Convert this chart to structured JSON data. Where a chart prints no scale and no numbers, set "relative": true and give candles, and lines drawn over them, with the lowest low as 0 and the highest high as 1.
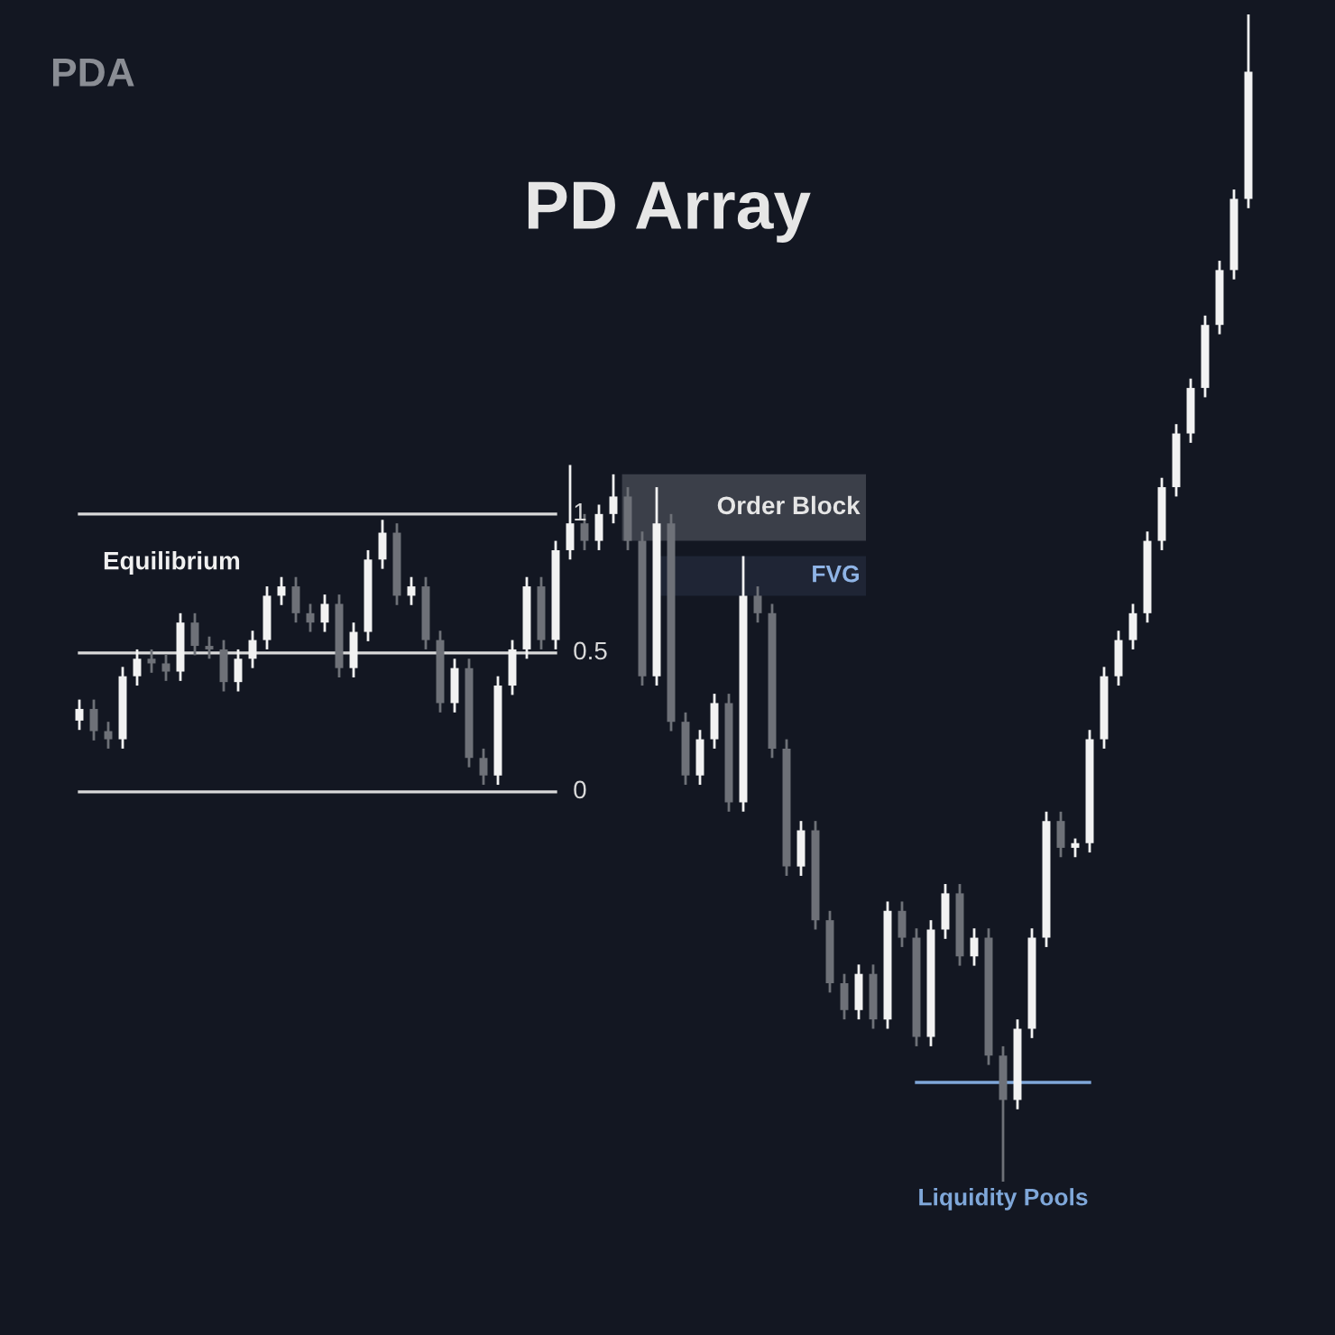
{
  "chart_data": {
    "type": "candlestick",
    "title": "PD Array",
    "relative": true,
    "categories": [
      null,
      null,
      null,
      null,
      null,
      null,
      null,
      null,
      null,
      null,
      null,
      null,
      null,
      null,
      null,
      null,
      null,
      null,
      null,
      null,
      null,
      null,
      null,
      null,
      null,
      null,
      null,
      null,
      null,
      null,
      null,
      null,
      null,
      null,
      null,
      null,
      null,
      null,
      null,
      null,
      null,
      null,
      null,
      null,
      null,
      null,
      null,
      null,
      null,
      null,
      null,
      null,
      null,
      null,
      null,
      null,
      null,
      null,
      null,
      null,
      null,
      null,
      null,
      null,
      null,
      null,
      null,
      null,
      null,
      null,
      null,
      null,
      null,
      null,
      null,
      null,
      null,
      null,
      null,
      null,
      null,
      null
    ],
    "ohlc": [
      [
        0.395,
        0.413,
        0.387,
        0.405
      ],
      [
        0.405,
        0.413,
        0.378,
        0.386
      ],
      [
        0.386,
        0.394,
        0.371,
        0.379
      ],
      [
        0.379,
        0.441,
        0.371,
        0.433
      ],
      [
        0.433,
        0.456,
        0.425,
        0.448
      ],
      [
        0.448,
        0.456,
        0.436,
        0.444
      ],
      [
        0.444,
        0.452,
        0.429,
        0.437
      ],
      [
        0.437,
        0.487,
        0.429,
        0.479
      ],
      [
        0.479,
        0.487,
        0.451,
        0.459
      ],
      [
        0.459,
        0.467,
        0.448,
        0.456
      ],
      [
        0.456,
        0.464,
        0.42,
        0.428
      ],
      [
        0.428,
        0.456,
        0.42,
        0.448
      ],
      [
        0.448,
        0.472,
        0.44,
        0.464
      ],
      [
        0.464,
        0.51,
        0.456,
        0.502
      ],
      [
        0.502,
        0.518,
        0.494,
        0.51
      ],
      [
        0.51,
        0.518,
        0.479,
        0.487
      ],
      [
        0.487,
        0.495,
        0.471,
        0.479
      ],
      [
        0.479,
        0.503,
        0.471,
        0.495
      ],
      [
        0.495,
        0.503,
        0.432,
        0.44
      ],
      [
        0.44,
        0.479,
        0.432,
        0.471
      ],
      [
        0.471,
        0.541,
        0.463,
        0.533
      ],
      [
        0.533,
        0.567,
        0.525,
        0.556
      ],
      [
        0.556,
        0.564,
        0.494,
        0.502
      ],
      [
        0.502,
        0.518,
        0.494,
        0.51
      ],
      [
        0.51,
        0.518,
        0.456,
        0.464
      ],
      [
        0.464,
        0.472,
        0.402,
        0.41
      ],
      [
        0.41,
        0.448,
        0.402,
        0.44
      ],
      [
        0.44,
        0.448,
        0.355,
        0.363
      ],
      [
        0.363,
        0.371,
        0.34,
        0.348
      ],
      [
        0.348,
        0.433,
        0.34,
        0.425
      ],
      [
        0.425,
        0.464,
        0.417,
        0.456
      ],
      [
        0.456,
        0.518,
        0.448,
        0.51
      ],
      [
        0.51,
        0.518,
        0.456,
        0.464
      ],
      [
        0.464,
        0.549,
        0.456,
        0.541
      ],
      [
        0.541,
        0.614,
        0.533,
        0.564
      ],
      [
        0.564,
        0.572,
        0.541,
        0.549
      ],
      [
        0.549,
        0.58,
        0.541,
        0.572
      ],
      [
        0.572,
        0.606,
        0.564,
        0.587
      ],
      [
        0.587,
        0.595,
        0.541,
        0.549
      ],
      [
        0.549,
        0.557,
        0.425,
        0.433
      ],
      [
        0.433,
        0.595,
        0.425,
        0.564
      ],
      [
        0.564,
        0.572,
        0.386,
        0.394
      ],
      [
        0.394,
        0.402,
        0.34,
        0.348
      ],
      [
        0.348,
        0.387,
        0.34,
        0.379
      ],
      [
        0.379,
        0.418,
        0.371,
        0.41
      ],
      [
        0.41,
        0.418,
        0.317,
        0.325
      ],
      [
        0.325,
        0.536,
        0.317,
        0.502
      ],
      [
        0.502,
        0.51,
        0.479,
        0.487
      ],
      [
        0.487,
        0.495,
        0.363,
        0.371
      ],
      [
        0.371,
        0.379,
        0.262,
        0.27
      ],
      [
        0.27,
        0.309,
        0.262,
        0.301
      ],
      [
        0.301,
        0.309,
        0.216,
        0.224
      ],
      [
        0.224,
        0.232,
        0.162,
        0.17
      ],
      [
        0.17,
        0.178,
        0.139,
        0.147
      ],
      [
        0.147,
        0.186,
        0.139,
        0.178
      ],
      [
        0.178,
        0.186,
        0.131,
        0.139
      ],
      [
        0.139,
        0.24,
        0.131,
        0.232
      ],
      [
        0.232,
        0.24,
        0.201,
        0.209
      ],
      [
        0.209,
        0.217,
        0.116,
        0.124
      ],
      [
        0.124,
        0.224,
        0.116,
        0.216
      ],
      [
        0.216,
        0.255,
        0.208,
        0.247
      ],
      [
        0.247,
        0.255,
        0.185,
        0.193
      ],
      [
        0.193,
        0.217,
        0.185,
        0.209
      ],
      [
        0.209,
        0.217,
        0.1,
        0.108
      ],
      [
        0.108,
        0.116,
        0.0,
        0.07
      ],
      [
        0.07,
        0.139,
        0.062,
        0.131
      ],
      [
        0.131,
        0.217,
        0.123,
        0.209
      ],
      [
        0.209,
        0.317,
        0.201,
        0.309
      ],
      [
        0.309,
        0.317,
        0.278,
        0.286
      ],
      [
        0.286,
        0.294,
        0.278,
        0.29
      ],
      [
        0.29,
        0.387,
        0.282,
        0.379
      ],
      [
        0.379,
        0.441,
        0.371,
        0.433
      ],
      [
        0.433,
        0.472,
        0.425,
        0.464
      ],
      [
        0.464,
        0.495,
        0.456,
        0.487
      ],
      [
        0.487,
        0.557,
        0.479,
        0.549
      ],
      [
        0.549,
        0.603,
        0.541,
        0.595
      ],
      [
        0.595,
        0.649,
        0.587,
        0.641
      ],
      [
        0.641,
        0.688,
        0.633,
        0.68
      ],
      [
        0.68,
        0.742,
        0.672,
        0.734
      ],
      [
        0.734,
        0.789,
        0.726,
        0.781
      ],
      [
        0.781,
        0.85,
        0.773,
        0.842
      ],
      [
        0.842,
        1.0,
        0.834,
        0.951
      ]
    ],
    "colors": [
      "#f2f2f2",
      "#6e7178",
      "#6e7178",
      "#f2f2f2",
      "#f2f2f2",
      "#6e7178",
      "#6e7178",
      "#f2f2f2",
      "#6e7178",
      "#6e7178",
      "#6e7178",
      "#f2f2f2",
      "#f2f2f2",
      "#f2f2f2",
      "#f2f2f2",
      "#6e7178",
      "#6e7178",
      "#f2f2f2",
      "#6e7178",
      "#f2f2f2",
      "#f2f2f2",
      "#f2f2f2",
      "#6e7178",
      "#f2f2f2",
      "#6e7178",
      "#6e7178",
      "#f2f2f2",
      "#6e7178",
      "#6e7178",
      "#f2f2f2",
      "#f2f2f2",
      "#f2f2f2",
      "#6e7178",
      "#f2f2f2",
      "#f2f2f2",
      "#6e7178",
      "#f2f2f2",
      "#f2f2f2",
      "#6e7178",
      "#6e7178",
      "#f2f2f2",
      "#6e7178",
      "#6e7178",
      "#f2f2f2",
      "#f2f2f2",
      "#6e7178",
      "#f2f2f2",
      "#6e7178",
      "#6e7178",
      "#6e7178",
      "#f2f2f2",
      "#6e7178",
      "#6e7178",
      "#6e7178",
      "#f2f2f2",
      "#6e7178",
      "#f2f2f2",
      "#6e7178",
      "#6e7178",
      "#f2f2f2",
      "#f2f2f2",
      "#6e7178",
      "#f2f2f2",
      "#6e7178",
      "#6e7178",
      "#f2f2f2",
      "#f2f2f2",
      "#f2f2f2",
      "#6e7178",
      "#f2f2f2",
      "#f2f2f2",
      "#f2f2f2",
      "#f2f2f2",
      "#f2f2f2",
      "#f2f2f2",
      "#f2f2f2",
      "#f2f2f2",
      "#f2f2f2",
      "#f2f2f2",
      "#f2f2f2",
      "#f2f2f2",
      "#f2f2f2"
    ],
    "bands": [
      {
        "axis": "y",
        "from": 0.549,
        "to": 0.606,
        "label": "Order Block",
        "color": "#3b3f49"
      },
      {
        "axis": "y",
        "from": 0.502,
        "to": 0.536,
        "label": "FVG",
        "color": "#1f2535"
      }
    ],
    "series": [
      {
        "type": "line",
        "name": "1",
        "color": "#d9d9d9",
        "values": [
          0.572,
          0.572,
          0.572,
          0.572,
          0.572,
          0.572,
          0.572,
          0.572,
          0.572,
          0.572,
          0.572,
          0.572,
          0.572,
          0.572,
          0.572,
          0.572,
          0.572,
          0.572,
          0.572,
          0.572,
          0.572,
          0.572,
          0.572,
          0.572,
          0.572,
          0.572,
          0.572,
          0.572,
          0.572,
          0.572,
          0.572,
          0.572,
          0.572,
          0.572,
          null,
          null,
          null,
          null,
          null,
          null,
          null,
          null,
          null,
          null,
          null,
          null,
          null,
          null,
          null,
          null,
          null,
          null,
          null,
          null,
          null,
          null,
          null,
          null,
          null,
          null,
          null,
          null,
          null,
          null,
          null,
          null,
          null,
          null,
          null,
          null,
          null,
          null,
          null,
          null,
          null,
          null,
          null,
          null,
          null,
          null,
          null,
          null
        ]
      },
      {
        "type": "line",
        "name": "0.5",
        "color": "#d9d9d9",
        "values": [
          0.453,
          0.453,
          0.453,
          0.453,
          0.453,
          0.453,
          0.453,
          0.453,
          0.453,
          0.453,
          0.453,
          0.453,
          0.453,
          0.453,
          0.453,
          0.453,
          0.453,
          0.453,
          0.453,
          0.453,
          0.453,
          0.453,
          0.453,
          0.453,
          0.453,
          0.453,
          0.453,
          0.453,
          0.453,
          0.453,
          0.453,
          0.453,
          0.453,
          0.453,
          null,
          null,
          null,
          null,
          null,
          null,
          null,
          null,
          null,
          null,
          null,
          null,
          null,
          null,
          null,
          null,
          null,
          null,
          null,
          null,
          null,
          null,
          null,
          null,
          null,
          null,
          null,
          null,
          null,
          null,
          null,
          null,
          null,
          null,
          null,
          null,
          null,
          null,
          null,
          null,
          null,
          null,
          null,
          null,
          null,
          null,
          null,
          null
        ]
      },
      {
        "type": "line",
        "name": "0",
        "color": "#d9d9d9",
        "values": [
          0.334,
          0.334,
          0.334,
          0.334,
          0.334,
          0.334,
          0.334,
          0.334,
          0.334,
          0.334,
          0.334,
          0.334,
          0.334,
          0.334,
          0.334,
          0.334,
          0.334,
          0.334,
          0.334,
          0.334,
          0.334,
          0.334,
          0.334,
          0.334,
          0.334,
          0.334,
          0.334,
          0.334,
          0.334,
          0.334,
          0.334,
          0.334,
          0.334,
          0.334,
          null,
          null,
          null,
          null,
          null,
          null,
          null,
          null,
          null,
          null,
          null,
          null,
          null,
          null,
          null,
          null,
          null,
          null,
          null,
          null,
          null,
          null,
          null,
          null,
          null,
          null,
          null,
          null,
          null,
          null,
          null,
          null,
          null,
          null,
          null,
          null,
          null,
          null,
          null,
          null,
          null,
          null,
          null,
          null,
          null,
          null,
          null,
          null
        ]
      },
      {
        "type": "line",
        "name": "Liquidity Pools",
        "color": "#7fa7d9",
        "values": [
          null,
          null,
          null,
          null,
          null,
          null,
          null,
          null,
          null,
          null,
          null,
          null,
          null,
          null,
          null,
          null,
          null,
          null,
          null,
          null,
          null,
          null,
          null,
          null,
          null,
          null,
          null,
          null,
          null,
          null,
          null,
          null,
          null,
          null,
          null,
          null,
          null,
          null,
          null,
          null,
          null,
          null,
          null,
          null,
          null,
          null,
          null,
          null,
          null,
          null,
          null,
          null,
          null,
          null,
          null,
          null,
          null,
          null,
          0.085,
          0.085,
          0.085,
          0.085,
          0.085,
          0.085,
          0.085,
          0.085,
          0.085,
          0.085,
          0.085,
          0.085,
          0.085,
          null,
          null,
          null,
          null,
          null,
          null,
          null,
          null,
          null,
          null,
          null
        ]
      }
    ],
    "annotations": [
      "PDA",
      "Equilibrium"
    ]
  }
}
